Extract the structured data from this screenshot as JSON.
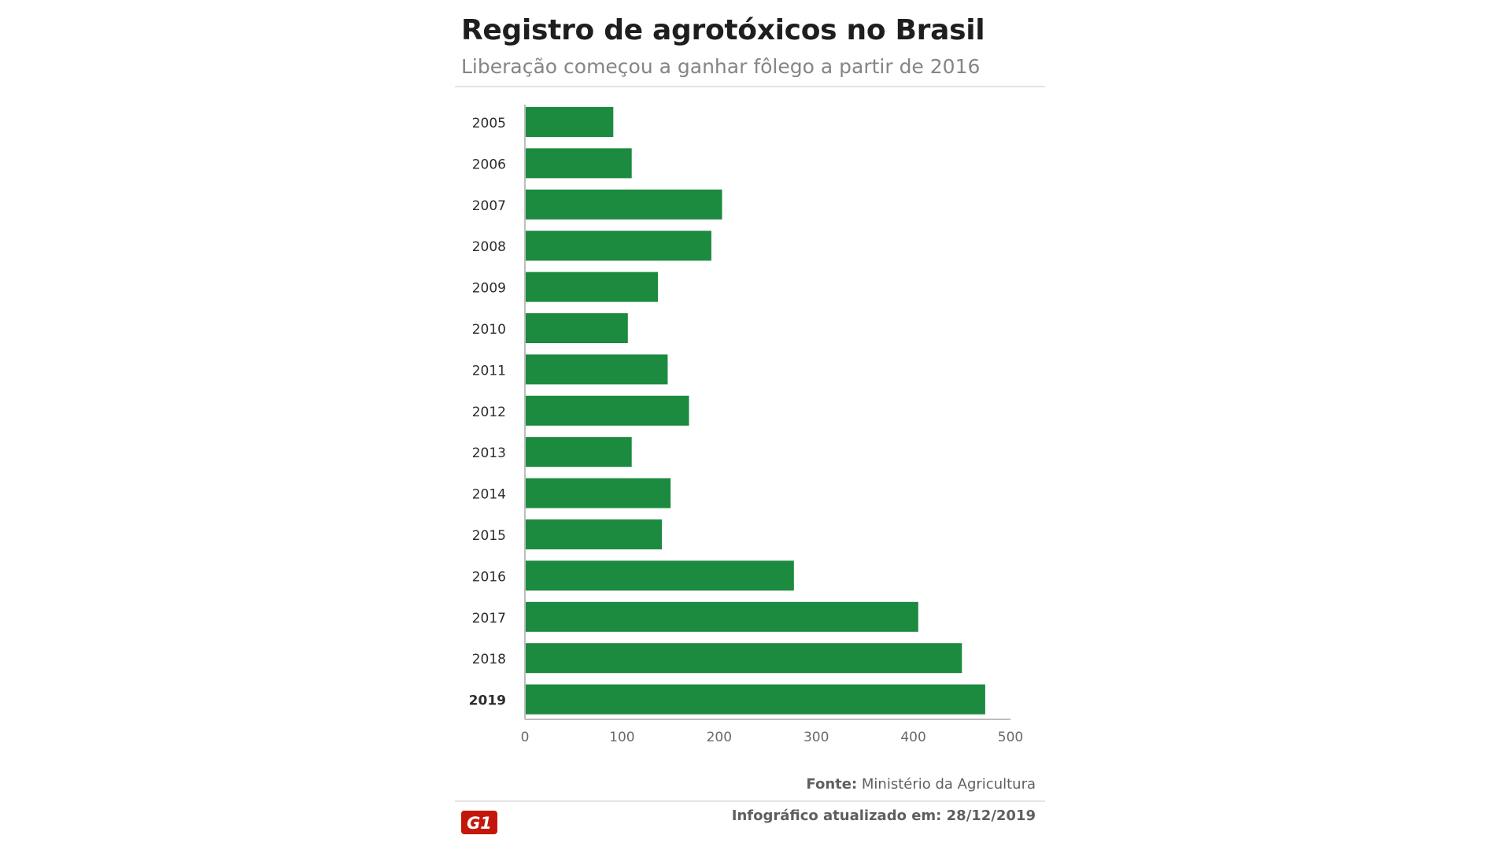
{
  "header": {
    "title": "Registro de agrotóxicos no Brasil",
    "subtitle": "Liberação começou a ganhar fôlego a partir de 2016"
  },
  "chart_data": {
    "type": "bar",
    "orientation": "horizontal",
    "categories": [
      "2005",
      "2006",
      "2007",
      "2008",
      "2009",
      "2010",
      "2011",
      "2012",
      "2013",
      "2014",
      "2015",
      "2016",
      "2017",
      "2018",
      "2019"
    ],
    "values": [
      91,
      110,
      203,
      192,
      137,
      106,
      147,
      169,
      110,
      150,
      141,
      277,
      405,
      450,
      474
    ],
    "xlim": [
      0,
      500
    ],
    "xticks": [
      "0",
      "100",
      "200",
      "300",
      "400",
      "500"
    ],
    "bar_color": "#1c8a3f",
    "grid": false,
    "highlighted_category": "2019"
  },
  "footer": {
    "source_label": "Fonte:",
    "source_text": "Ministério da Agricultura",
    "updated_text": "Infográfico atualizado em: 28/12/2019",
    "logo_text": "G1",
    "logo_color": "#c4170c"
  }
}
